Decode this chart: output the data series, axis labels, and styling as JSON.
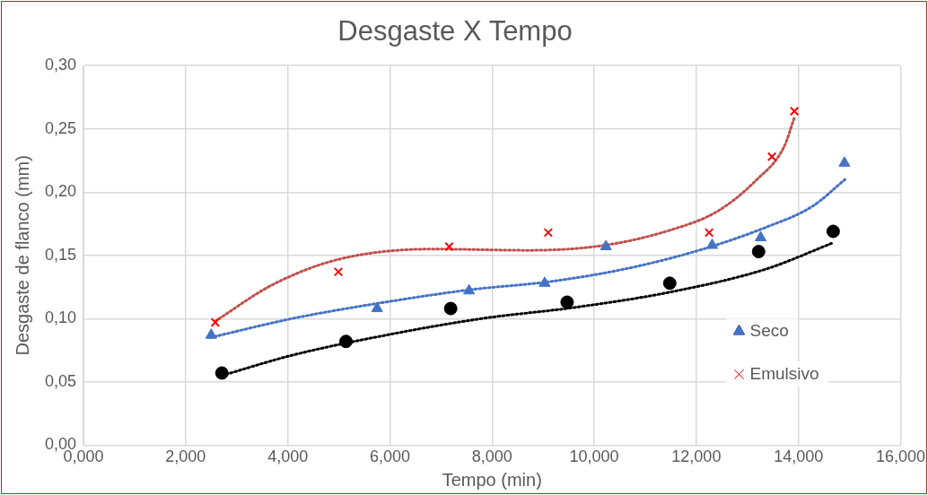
{
  "chart_data": {
    "type": "scatter",
    "title": "Desgaste X Tempo",
    "xlabel": "Tempo (min)",
    "ylabel": "Desgaste de flanco (mm)",
    "xlim": [
      0,
      16
    ],
    "xticks": [
      {
        "value": 0,
        "label": "0,000"
      },
      {
        "value": 2,
        "label": "2,000"
      },
      {
        "value": 4,
        "label": "4,000"
      },
      {
        "value": 6,
        "label": "6,000"
      },
      {
        "value": 8,
        "label": "8,000"
      },
      {
        "value": 10,
        "label": "10,000"
      },
      {
        "value": 12,
        "label": "12,000"
      },
      {
        "value": 14,
        "label": "14,000"
      },
      {
        "value": 16,
        "label": "16,000"
      }
    ],
    "ylim": [
      0,
      0.3
    ],
    "yticks": [
      {
        "value": 0,
        "label": "0,00"
      },
      {
        "value": 0.05,
        "label": "0,05"
      },
      {
        "value": 0.1,
        "label": "0,10"
      },
      {
        "value": 0.15,
        "label": "0,15"
      },
      {
        "value": 0.2,
        "label": "0,20"
      },
      {
        "value": 0.25,
        "label": "0,25"
      },
      {
        "value": 0.3,
        "label": "0,30"
      }
    ],
    "grid": true,
    "legend": "right",
    "series": [
      {
        "name": "Seco",
        "color": "#4472c4",
        "marker": "triangle",
        "x": [
          2.5,
          5.75,
          7.55,
          9.03,
          10.23,
          12.31,
          13.26,
          14.9
        ],
        "values": [
          0.087,
          0.108,
          0.122,
          0.128,
          0.157,
          0.158,
          0.164,
          0.223
        ]
      },
      {
        "name": "Emulsivo",
        "color": "#ff0000",
        "marker": "cross",
        "x": [
          2.58,
          4.99,
          7.16,
          9.1,
          12.25,
          13.48,
          13.92
        ],
        "values": [
          0.097,
          0.137,
          0.157,
          0.168,
          0.168,
          0.228,
          0.264
        ]
      },
      {
        "color": "#000000",
        "marker": "circle",
        "x": [
          2.71,
          5.14,
          7.19,
          9.47,
          11.48,
          13.22,
          14.68
        ],
        "values": [
          0.057,
          0.082,
          0.108,
          0.113,
          0.128,
          0.153,
          0.169
        ]
      },
      {
        "type": "line",
        "color": "#4472c4",
        "marker": "none",
        "line_style": "dotted",
        "x": [
          2.48,
          4.08,
          5.75,
          7.6,
          9.08,
          10.57,
          12.05,
          13.35,
          14.28,
          14.91
        ],
        "values": [
          0.085,
          0.1,
          0.112,
          0.123,
          0.129,
          0.139,
          0.154,
          0.172,
          0.189,
          0.21
        ]
      },
      {
        "type": "line",
        "color": "#c0504d",
        "marker": "none",
        "line_style": "dotted",
        "x": [
          2.58,
          3.71,
          5.01,
          6.86,
          8.71,
          10.2,
          11.49,
          12.42,
          13.16,
          13.72,
          13.92
        ],
        "values": [
          0.098,
          0.127,
          0.147,
          0.155,
          0.154,
          0.158,
          0.17,
          0.185,
          0.209,
          0.236,
          0.259
        ]
      },
      {
        "type": "line",
        "color": "#000000",
        "marker": "none",
        "line_style": "dotted",
        "x": [
          2.71,
          4.08,
          5.93,
          7.79,
          9.64,
          11.49,
          13.35,
          14.68
        ],
        "values": [
          0.055,
          0.071,
          0.087,
          0.1,
          0.109,
          0.121,
          0.139,
          0.16
        ]
      }
    ]
  }
}
